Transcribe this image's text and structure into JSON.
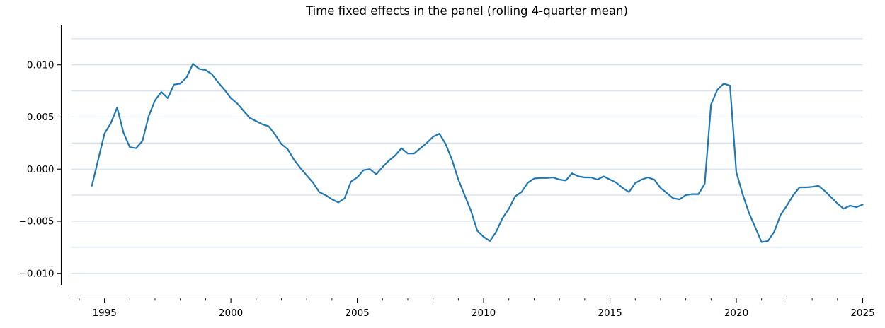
{
  "figure": {
    "background": "#ffffff"
  },
  "chart_data": {
    "type": "line",
    "title": "Time fixed effects in the panel (rolling 4-quarter mean)",
    "xlabel": "",
    "ylabel": "",
    "legend": "none",
    "grid": {
      "axis": "y",
      "step": 0.0025,
      "color": "#d9e2ef",
      "vertical_lines": false
    },
    "xlim": [
      1993.68,
      2025.0
    ],
    "ylim": [
      -0.01117,
      0.01364
    ],
    "x_ticks": {
      "major": [
        {
          "value": 1995,
          "label": "1995"
        },
        {
          "value": 2000,
          "label": "2000"
        },
        {
          "value": 2005,
          "label": "2005"
        },
        {
          "value": 2010,
          "label": "2010"
        },
        {
          "value": 2015,
          "label": "2015"
        },
        {
          "value": 2020,
          "label": "2020"
        },
        {
          "value": 2025,
          "label": "2025"
        }
      ],
      "minor_start": 1994,
      "minor_end": 2025,
      "minor_step": 1
    },
    "y_ticks": [
      {
        "value": -0.01,
        "label": "−0.010"
      },
      {
        "value": -0.005,
        "label": "−0.005"
      },
      {
        "value": 0.0,
        "label": "0.000"
      },
      {
        "value": 0.005,
        "label": "0.005"
      },
      {
        "value": 0.01,
        "label": "0.010"
      }
    ],
    "series": [
      {
        "name": "time fixed effect (rolling 4-quarter mean)",
        "color": "#1f77b4",
        "line_width": 2.2,
        "x_unit": "year (quarterly points)",
        "points": [
          [
            1994.5,
            -0.0016
          ],
          [
            1994.75,
            0.0009
          ],
          [
            1995,
            0.0034
          ],
          [
            1995.25,
            0.0044
          ],
          [
            1995.5,
            0.0059
          ],
          [
            1995.75,
            0.0035
          ],
          [
            1996,
            0.0021
          ],
          [
            1996.25,
            0.002
          ],
          [
            1996.5,
            0.0027
          ],
          [
            1996.75,
            0.0051
          ],
          [
            1997,
            0.0066
          ],
          [
            1997.25,
            0.0074
          ],
          [
            1997.5,
            0.0068
          ],
          [
            1997.75,
            0.0081
          ],
          [
            1998,
            0.0082
          ],
          [
            1998.25,
            0.0088
          ],
          [
            1998.5,
            0.0101
          ],
          [
            1998.75,
            0.0096
          ],
          [
            1999,
            0.0095
          ],
          [
            1999.25,
            0.0091
          ],
          [
            1999.5,
            0.0083
          ],
          [
            1999.75,
            0.0076
          ],
          [
            2000,
            0.0068
          ],
          [
            2000.25,
            0.0063
          ],
          [
            2000.5,
            0.0056
          ],
          [
            2000.75,
            0.0049
          ],
          [
            2001,
            0.0046
          ],
          [
            2001.25,
            0.0043
          ],
          [
            2001.5,
            0.0041
          ],
          [
            2001.75,
            0.0033
          ],
          [
            2002,
            0.0024
          ],
          [
            2002.25,
            0.0019
          ],
          [
            2002.5,
            0.0009
          ],
          [
            2002.75,
            0.0001
          ],
          [
            2003,
            -0.0006
          ],
          [
            2003.25,
            -0.0013
          ],
          [
            2003.5,
            -0.0022
          ],
          [
            2003.75,
            -0.0025
          ],
          [
            2004,
            -0.0029
          ],
          [
            2004.25,
            -0.0032
          ],
          [
            2004.5,
            -0.0028
          ],
          [
            2004.75,
            -0.0012
          ],
          [
            2005,
            -0.0008
          ],
          [
            2005.25,
            -0.0001
          ],
          [
            2005.5,
            0
          ],
          [
            2005.75,
            -0.0005
          ],
          [
            2006,
            0.0002
          ],
          [
            2006.25,
            0.0008
          ],
          [
            2006.5,
            0.0013
          ],
          [
            2006.75,
            0.002
          ],
          [
            2007,
            0.0015
          ],
          [
            2007.25,
            0.0015
          ],
          [
            2007.5,
            0.002
          ],
          [
            2007.75,
            0.0025
          ],
          [
            2008,
            0.0031
          ],
          [
            2008.25,
            0.0034
          ],
          [
            2008.5,
            0.0024
          ],
          [
            2008.75,
            0.0009
          ],
          [
            2009,
            -0.001
          ],
          [
            2009.25,
            -0.0025
          ],
          [
            2009.5,
            -0.004
          ],
          [
            2009.75,
            -0.0059
          ],
          [
            2010,
            -0.0065
          ],
          [
            2010.25,
            -0.0069
          ],
          [
            2010.5,
            -0.006
          ],
          [
            2010.75,
            -0.0047
          ],
          [
            2011,
            -0.0038
          ],
          [
            2011.25,
            -0.0026
          ],
          [
            2011.5,
            -0.0022
          ],
          [
            2011.75,
            -0.0013
          ],
          [
            2012,
            -0.0009
          ],
          [
            2012.25,
            -0.00085
          ],
          [
            2012.5,
            -0.00085
          ],
          [
            2012.75,
            -0.0008
          ],
          [
            2013,
            -0.001
          ],
          [
            2013.25,
            -0.0011
          ],
          [
            2013.5,
            -0.0004
          ],
          [
            2013.75,
            -0.0007
          ],
          [
            2014,
            -0.0008
          ],
          [
            2014.25,
            -0.0008
          ],
          [
            2014.5,
            -0.001
          ],
          [
            2014.75,
            -0.0007
          ],
          [
            2015,
            -0.001
          ],
          [
            2015.25,
            -0.0013
          ],
          [
            2015.5,
            -0.0018
          ],
          [
            2015.75,
            -0.0022
          ],
          [
            2016,
            -0.00135
          ],
          [
            2016.25,
            -0.001
          ],
          [
            2016.5,
            -0.0008
          ],
          [
            2016.75,
            -0.001
          ],
          [
            2017,
            -0.0018
          ],
          [
            2017.25,
            -0.0023
          ],
          [
            2017.5,
            -0.0028
          ],
          [
            2017.75,
            -0.0029
          ],
          [
            2018,
            -0.0025
          ],
          [
            2018.25,
            -0.0024
          ],
          [
            2018.5,
            -0.0024
          ],
          [
            2018.75,
            -0.0014
          ],
          [
            2019,
            0.0062
          ],
          [
            2019.25,
            0.0076
          ],
          [
            2019.5,
            0.0082
          ],
          [
            2019.75,
            0.008
          ],
          [
            2020,
            -0.0003
          ],
          [
            2020.25,
            -0.0024
          ],
          [
            2020.5,
            -0.0042
          ],
          [
            2020.75,
            -0.0056
          ],
          [
            2021,
            -0.007
          ],
          [
            2021.25,
            -0.0069
          ],
          [
            2021.5,
            -0.006
          ],
          [
            2021.75,
            -0.0044
          ],
          [
            2022,
            -0.0035
          ],
          [
            2022.25,
            -0.0025
          ],
          [
            2022.5,
            -0.00175
          ],
          [
            2022.75,
            -0.00175
          ],
          [
            2023,
            -0.0017
          ],
          [
            2023.25,
            -0.0016
          ],
          [
            2023.5,
            -0.0021
          ],
          [
            2023.75,
            -0.0027
          ],
          [
            2024,
            -0.0033
          ],
          [
            2024.25,
            -0.0038
          ],
          [
            2024.5,
            -0.0035
          ],
          [
            2024.75,
            -0.00365
          ],
          [
            2025,
            -0.0034
          ]
        ]
      }
    ]
  }
}
